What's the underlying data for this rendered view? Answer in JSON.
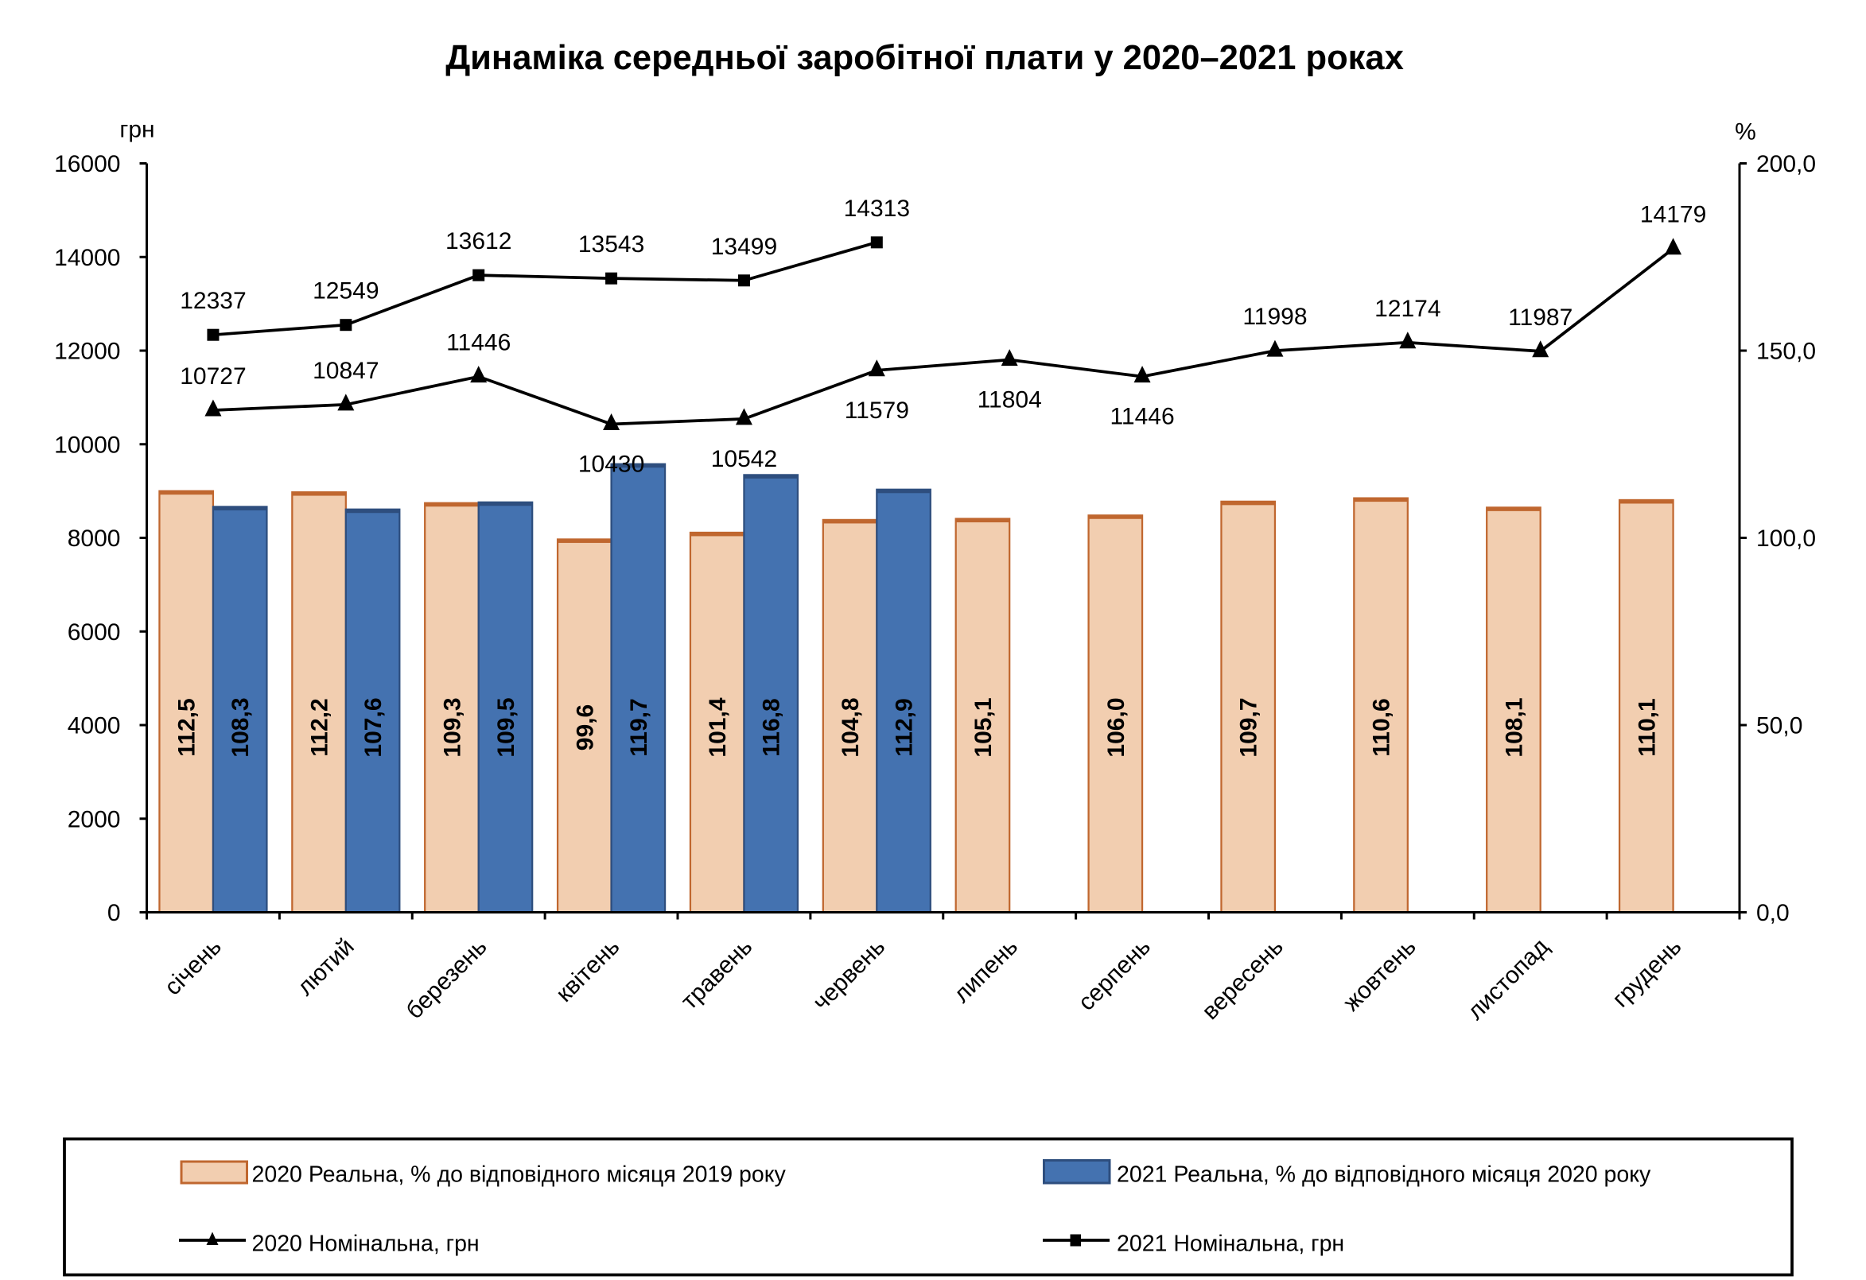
{
  "chart_data": {
    "type": "bar+line",
    "title": "Динаміка середньої заробітної плати у 2020–2021 роках",
    "categories": [
      "січень",
      "лютий",
      "березень",
      "квітень",
      "травень",
      "червень",
      "липень",
      "серпень",
      "вересень",
      "жовтень",
      "листопад",
      "грудень"
    ],
    "y_left": {
      "label": "грн",
      "lim": [
        0,
        16000
      ],
      "ticks": [
        "0",
        "2000",
        "4000",
        "6000",
        "8000",
        "10000",
        "12000",
        "14000",
        "16000"
      ]
    },
    "y_right": {
      "label": "%",
      "lim": [
        0,
        200
      ],
      "ticks": [
        "0,0",
        "50,0",
        "100,0",
        "150,0",
        "200,0"
      ]
    },
    "grid": false,
    "legend_position": "bottom",
    "series": [
      {
        "name": "2020 Реальна, % до відповідного місяця 2019 року",
        "type": "bar",
        "axis": "right",
        "color": "#F2CEB0",
        "edge": "#C0672F",
        "values": [
          112.5,
          112.2,
          109.3,
          99.6,
          101.4,
          104.8,
          105.1,
          106.0,
          109.7,
          110.6,
          108.1,
          110.1
        ],
        "labels": [
          "112,5",
          "112,2",
          "109,3",
          "99,6",
          "101,4",
          "104,8",
          "105,1",
          "106,0",
          "109,7",
          "110,6",
          "108,1",
          "110,1"
        ]
      },
      {
        "name": "2021 Реальна, % до відповідного місяця 2020 року",
        "type": "bar",
        "axis": "right",
        "color": "#4472B0",
        "edge": "#2E4E7E",
        "values": [
          108.3,
          107.6,
          109.5,
          119.7,
          116.8,
          112.9,
          null,
          null,
          null,
          null,
          null,
          null
        ],
        "labels": [
          "108,3",
          "107,6",
          "109,5",
          "119,7",
          "116,8",
          "112,9"
        ]
      },
      {
        "name": "2020 Номінальна, грн",
        "type": "line",
        "axis": "left",
        "marker": "triangle",
        "color": "#000000",
        "values": [
          10727,
          10847,
          11446,
          10430,
          10542,
          11579,
          11804,
          11446,
          11998,
          12174,
          11987,
          14179
        ]
      },
      {
        "name": "2021 Номінальна, грн",
        "type": "line",
        "axis": "left",
        "marker": "square",
        "color": "#000000",
        "values": [
          12337,
          12549,
          13612,
          13543,
          13499,
          14313,
          null,
          null,
          null,
          null,
          null,
          null
        ]
      }
    ]
  }
}
